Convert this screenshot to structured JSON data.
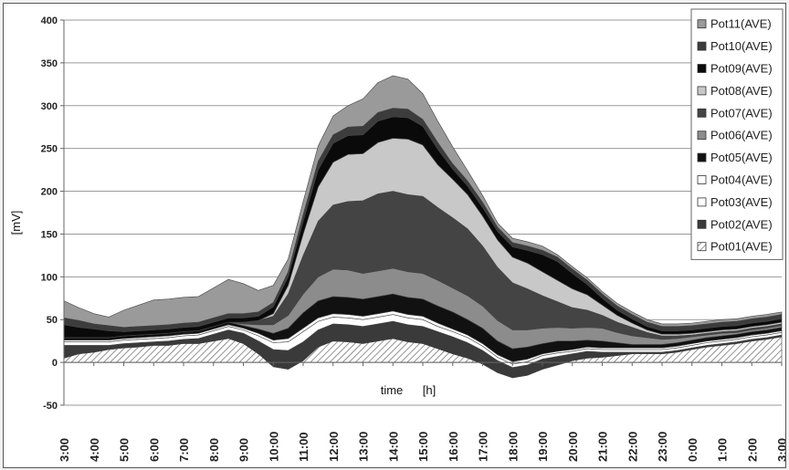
{
  "chart_data": {
    "type": "area",
    "stacked": true,
    "xlabel": "time",
    "xunit": "[h]",
    "ylabel": "[mV]",
    "ylim": [
      -50,
      400
    ],
    "yticks": [
      -50,
      0,
      50,
      100,
      150,
      200,
      250,
      300,
      350,
      400
    ],
    "grid": true,
    "legend_position": "top-right",
    "categories": [
      "3:00",
      "4:00",
      "5:00",
      "6:00",
      "7:00",
      "8:00",
      "9:00",
      "10:00",
      "11:00",
      "12:00",
      "13:00",
      "14:00",
      "15:00",
      "16:00",
      "17:00",
      "18:00",
      "19:00",
      "20:00",
      "21:00",
      "22:00",
      "23:00",
      "0:00",
      "1:00",
      "2:00",
      "3:00"
    ],
    "x": [
      0,
      0.5,
      1,
      1.5,
      2,
      2.5,
      3,
      3.5,
      4,
      4.5,
      5,
      5.5,
      6,
      6.5,
      7,
      7.5,
      8,
      8.5,
      9,
      9.5,
      10,
      10.5,
      11,
      11.5,
      12,
      12.5,
      13,
      13.5,
      14,
      14.5,
      15,
      15.5,
      16,
      16.5,
      17,
      17.5,
      18,
      18.5,
      19,
      19.5,
      20,
      20.5,
      21,
      21.5,
      22,
      22.5,
      23,
      23.5,
      24
    ],
    "series": [
      {
        "name": "Pot01(AVE)",
        "color": "#ffffff",
        "pattern": "hatch",
        "values": [
          5,
          10,
          12,
          15,
          17,
          18,
          20,
          20,
          22,
          22,
          25,
          28,
          22,
          10,
          -5,
          -8,
          2,
          18,
          25,
          24,
          22,
          25,
          28,
          24,
          22,
          16,
          10,
          5,
          -2,
          -12,
          -18,
          -15,
          -8,
          -3,
          2,
          5,
          6,
          8,
          10,
          10,
          10,
          12,
          15,
          18,
          20,
          22,
          25,
          27,
          30
        ]
      },
      {
        "name": "Pot02(AVE)",
        "color": "#3a3a3a",
        "values": [
          15,
          10,
          8,
          5,
          5,
          5,
          4,
          5,
          5,
          6,
          8,
          10,
          12,
          15,
          20,
          22,
          22,
          20,
          20,
          20,
          20,
          20,
          20,
          20,
          20,
          20,
          20,
          18,
          16,
          14,
          12,
          12,
          12,
          10,
          8,
          8,
          6,
          4,
          2,
          2,
          2,
          2,
          2,
          2,
          2,
          2,
          2,
          2,
          2
        ]
      },
      {
        "name": "Pot03(AVE)",
        "color": "#ffffff",
        "values": [
          4,
          4,
          4,
          4,
          4,
          4,
          4,
          4,
          4,
          4,
          4,
          4,
          4,
          6,
          8,
          10,
          12,
          10,
          8,
          8,
          8,
          8,
          8,
          8,
          8,
          6,
          6,
          6,
          5,
          4,
          4,
          4,
          4,
          4,
          3,
          3,
          3,
          3,
          3,
          3,
          3,
          3,
          3,
          3,
          3,
          3,
          3,
          3,
          3
        ]
      },
      {
        "name": "Pot04(AVE)",
        "color": "#ffffff",
        "values": [
          2,
          2,
          2,
          2,
          2,
          2,
          2,
          2,
          2,
          2,
          2,
          2,
          2,
          3,
          3,
          4,
          4,
          4,
          4,
          4,
          4,
          4,
          4,
          4,
          4,
          4,
          3,
          3,
          3,
          3,
          3,
          3,
          2,
          2,
          2,
          2,
          2,
          2,
          2,
          2,
          2,
          2,
          2,
          2,
          2,
          2,
          2,
          2,
          2
        ]
      },
      {
        "name": "Pot05(AVE)",
        "color": "#111111",
        "values": [
          3,
          3,
          3,
          3,
          3,
          3,
          3,
          3,
          3,
          3,
          3,
          3,
          3,
          5,
          8,
          12,
          18,
          20,
          20,
          20,
          20,
          20,
          20,
          20,
          20,
          20,
          20,
          18,
          18,
          16,
          15,
          14,
          12,
          12,
          10,
          8,
          8,
          6,
          4,
          4,
          4,
          4,
          4,
          4,
          4,
          4,
          4,
          4,
          4
        ]
      },
      {
        "name": "Pot06(AVE)",
        "color": "#8c8c8c",
        "values": [
          0,
          0,
          0,
          0,
          0,
          0,
          0,
          0,
          0,
          0,
          0,
          0,
          2,
          5,
          10,
          15,
          22,
          28,
          32,
          32,
          30,
          30,
          30,
          30,
          30,
          30,
          28,
          28,
          26,
          24,
          22,
          20,
          18,
          16,
          15,
          15,
          15,
          12,
          10,
          8,
          6,
          5,
          4,
          3,
          3,
          2,
          2,
          2,
          2
        ]
      },
      {
        "name": "Pot07(AVE)",
        "color": "#444444",
        "values": [
          0,
          0,
          0,
          0,
          0,
          0,
          0,
          0,
          0,
          0,
          0,
          0,
          2,
          5,
          10,
          25,
          45,
          65,
          75,
          80,
          85,
          90,
          90,
          90,
          90,
          85,
          82,
          78,
          70,
          62,
          55,
          48,
          38,
          30,
          24,
          20,
          15,
          12,
          10,
          6,
          4,
          3,
          2,
          2,
          2,
          2,
          2,
          2,
          2
        ]
      },
      {
        "name": "Pot08(AVE)",
        "color": "#c8c8c8",
        "values": [
          0,
          0,
          0,
          0,
          0,
          0,
          0,
          0,
          0,
          0,
          0,
          0,
          0,
          0,
          3,
          10,
          25,
          40,
          50,
          55,
          55,
          60,
          62,
          65,
          60,
          50,
          45,
          40,
          35,
          32,
          30,
          30,
          28,
          25,
          22,
          18,
          12,
          8,
          5,
          3,
          2,
          2,
          2,
          2,
          2,
          2,
          2,
          2,
          2
        ]
      },
      {
        "name": "Pot09(AVE)",
        "color": "#0a0a0a",
        "values": [
          15,
          12,
          10,
          8,
          5,
          5,
          5,
          5,
          5,
          5,
          5,
          5,
          5,
          5,
          8,
          10,
          15,
          20,
          22,
          22,
          22,
          25,
          25,
          25,
          22,
          18,
          12,
          10,
          10,
          10,
          12,
          15,
          20,
          22,
          18,
          12,
          8,
          6,
          5,
          4,
          4,
          4,
          4,
          4,
          4,
          4,
          4,
          4,
          4
        ]
      },
      {
        "name": "Pot10(AVE)",
        "color": "#3c3c3c",
        "values": [
          8,
          8,
          6,
          6,
          5,
          5,
          5,
          5,
          5,
          5,
          5,
          5,
          5,
          5,
          5,
          6,
          8,
          10,
          10,
          10,
          10,
          10,
          10,
          10,
          8,
          8,
          6,
          6,
          6,
          5,
          5,
          5,
          5,
          5,
          5,
          5,
          5,
          5,
          5,
          5,
          5,
          5,
          5,
          5,
          5,
          5,
          5,
          5,
          5
        ]
      },
      {
        "name": "Pot11(AVE)",
        "color": "#9a9a9a",
        "values": [
          20,
          15,
          12,
          10,
          20,
          25,
          30,
          30,
          30,
          30,
          35,
          40,
          35,
          25,
          20,
          15,
          15,
          18,
          22,
          25,
          32,
          35,
          38,
          35,
          30,
          25,
          20,
          12,
          8,
          5,
          5,
          5,
          5,
          3,
          3,
          3,
          3,
          3,
          3,
          3,
          3,
          3,
          3,
          3,
          3,
          3,
          3,
          3,
          3
        ]
      }
    ]
  }
}
